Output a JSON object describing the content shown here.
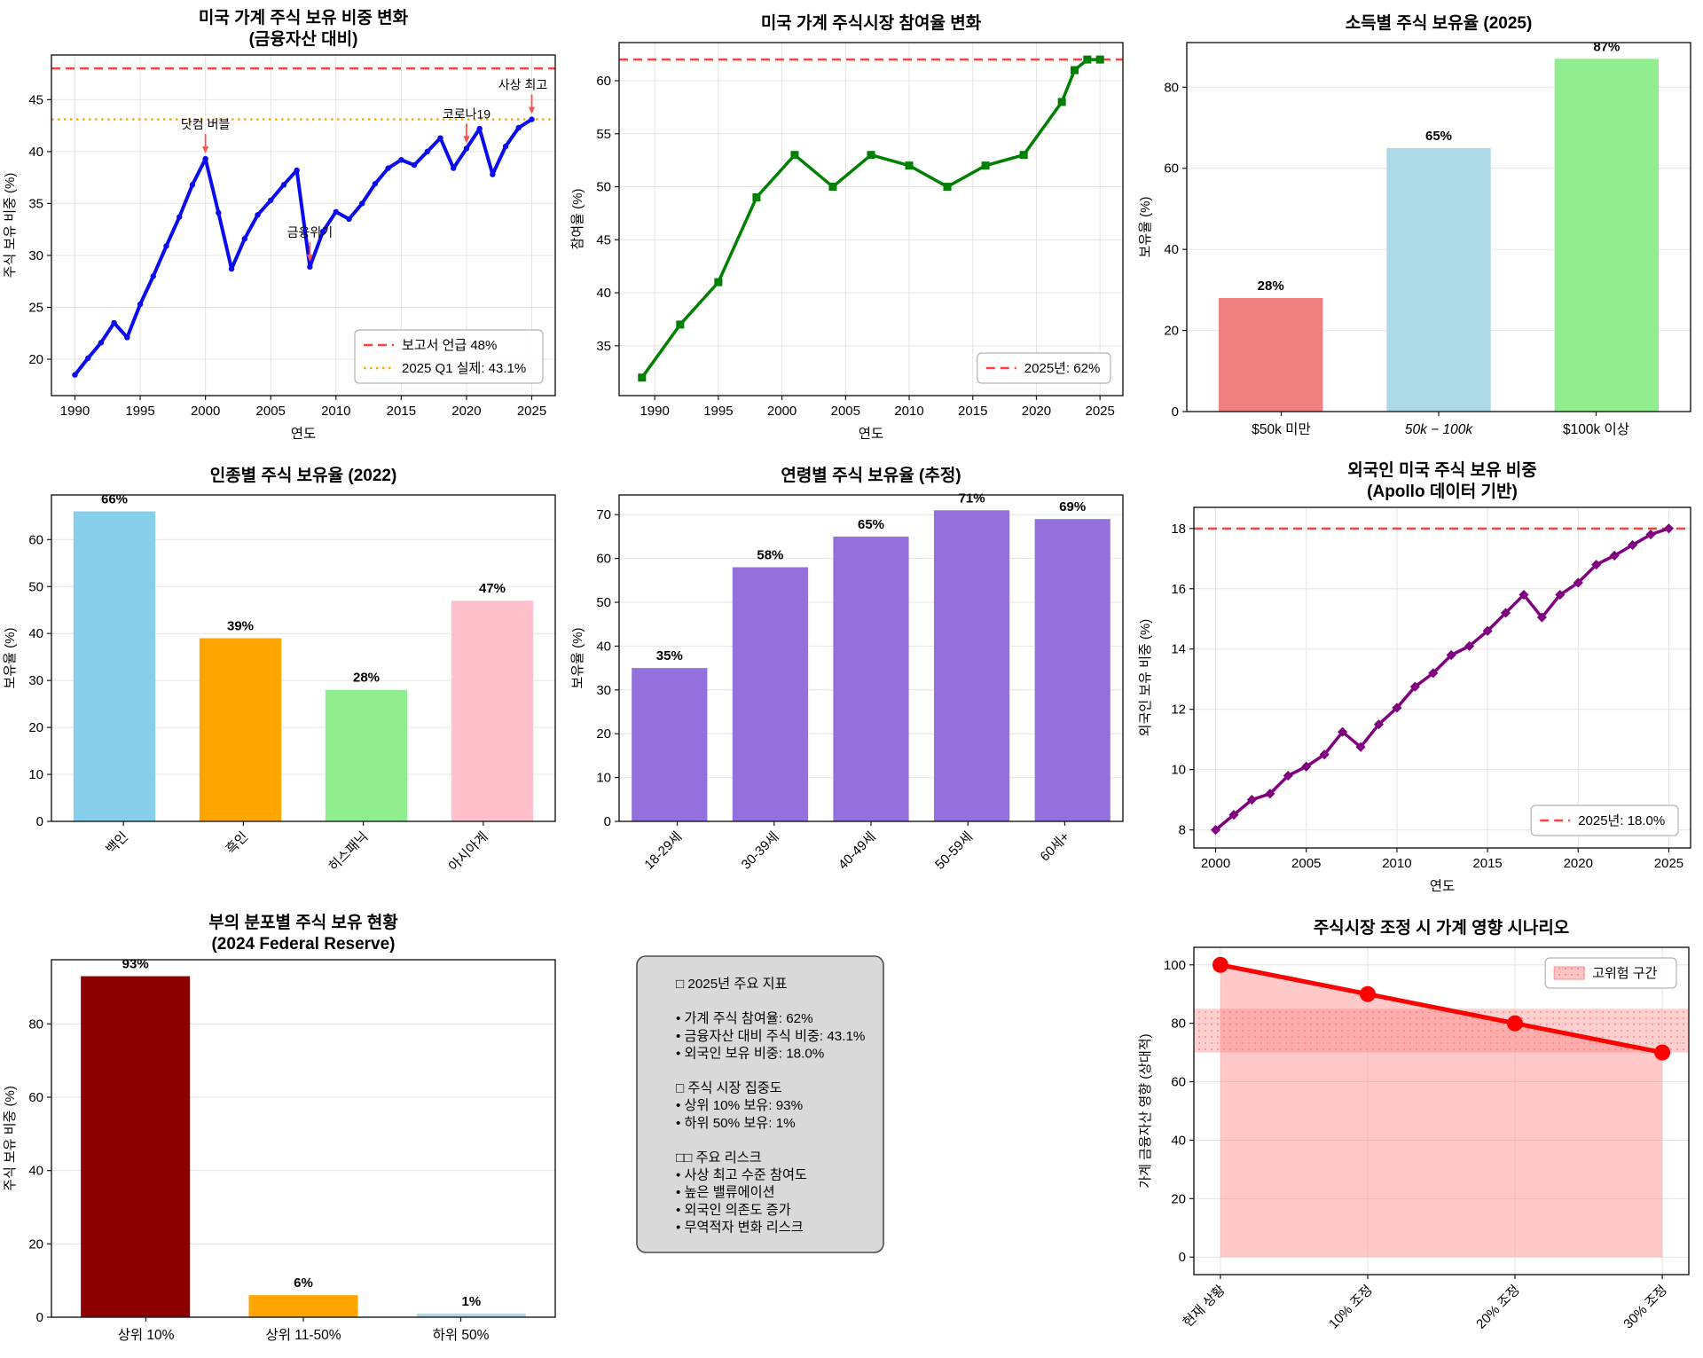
{
  "figure": {
    "background": "#ffffff",
    "grid": "3x3 matplotlib-style dashboard"
  },
  "chart_data": [
    {
      "id": "household-stock-share",
      "type": "line",
      "title": [
        "미국 가계 주식 보유 비중 변화",
        "(금융자산 대비)"
      ],
      "xlabel": "연도",
      "ylabel": "주식 보유 비중 (%)",
      "xlim": [
        1988.2,
        2026.8
      ],
      "ylim": [
        16.5,
        49.3
      ],
      "xticks": [
        1990,
        1995,
        2000,
        2005,
        2010,
        2015,
        2020,
        2025
      ],
      "yticks": [
        20,
        25,
        30,
        35,
        40,
        45
      ],
      "grid": "xy",
      "series": [
        {
          "name": "주식 보유 비중",
          "color": "#0b0bef",
          "lw": 4,
          "marker": "circle",
          "ms": 3.2,
          "x": [
            1990,
            1991,
            1992,
            1993,
            1994,
            1995,
            1996,
            1997,
            1998,
            1999,
            2000,
            2001,
            2002,
            2003,
            2004,
            2005,
            2006,
            2007,
            2008,
            2009,
            2010,
            2011,
            2012,
            2013,
            2014,
            2015,
            2016,
            2017,
            2018,
            2019,
            2020,
            2021,
            2022,
            2023,
            2024,
            2025
          ],
          "y": [
            18.5,
            20.1,
            21.6,
            23.5,
            22.1,
            25.3,
            28.0,
            30.9,
            33.7,
            36.8,
            39.3,
            34.1,
            28.7,
            31.6,
            33.9,
            35.3,
            36.8,
            38.2,
            28.9,
            32.3,
            34.2,
            33.5,
            35.0,
            36.9,
            38.4,
            39.2,
            38.7,
            40.0,
            41.3,
            38.4,
            40.3,
            42.2,
            37.8,
            40.5,
            42.3,
            43.1
          ]
        }
      ],
      "hlines": [
        {
          "y": 48.0,
          "color": "#ff4040",
          "style": "dashed",
          "label": "보고서 언급 48%"
        },
        {
          "y": 43.1,
          "color": "#ffa500",
          "style": "dotted",
          "label": "2025 Q1 실제: 43.1%"
        }
      ],
      "annotations": [
        {
          "text": "닷컴 버블",
          "x": 2000,
          "y": 39.3
        },
        {
          "text": "금융위기",
          "x": 2008,
          "y": 28.9
        },
        {
          "text": "코로나19",
          "x": 2020,
          "y": 40.3
        },
        {
          "text": "사상 최고",
          "x": 2025,
          "y": 43.1,
          "dx": -10
        }
      ],
      "legend": {
        "pos": "br",
        "entries": [
          {
            "sample": "dashed",
            "color": "#ff4040",
            "label": "보고서 언급 48%"
          },
          {
            "sample": "dotted",
            "color": "#ffa500",
            "label": "2025 Q1 실제: 43.1%"
          }
        ]
      }
    },
    {
      "id": "market-participation",
      "type": "line",
      "title": [
        "미국 가계 주식시장 참여율 변화"
      ],
      "xlabel": "연도",
      "ylabel": "참여율 (%)",
      "xlim": [
        1987.2,
        2026.8
      ],
      "ylim": [
        30.3,
        63.6
      ],
      "xticks": [
        1990,
        1995,
        2000,
        2005,
        2010,
        2015,
        2020,
        2025
      ],
      "yticks": [
        35,
        40,
        45,
        50,
        55,
        60
      ],
      "grid": "xy",
      "series": [
        {
          "name": "참여율",
          "color": "#008000",
          "lw": 3.5,
          "marker": "square",
          "ms": 9,
          "x": [
            1989,
            1992,
            1995,
            1998,
            2001,
            2004,
            2007,
            2010,
            2013,
            2016,
            2019,
            2022,
            2023,
            2024,
            2025
          ],
          "y": [
            32,
            37,
            41,
            49,
            53,
            50,
            53,
            52,
            50,
            52,
            53,
            58,
            61,
            62,
            62
          ]
        }
      ],
      "hlines": [
        {
          "y": 62,
          "color": "#ff4040",
          "style": "dashed",
          "label": "2025년: 62%"
        }
      ],
      "legend": {
        "pos": "br",
        "entries": [
          {
            "sample": "dashed",
            "color": "#ff4040",
            "label": "2025년: 62%"
          }
        ]
      }
    },
    {
      "id": "ownership-by-income",
      "type": "bar",
      "title": [
        "소득별 주식 보유율 (2025)"
      ],
      "ylabel": "보유율 (%)",
      "categories": [
        "$50k 미만",
        "50k − 100k",
        "$100k 이상"
      ],
      "italic_categories": [
        1
      ],
      "values": [
        28,
        65,
        87
      ],
      "value_labels": [
        "28%",
        "65%",
        "87%"
      ],
      "colors": [
        "#F08080",
        "#ADD8E6",
        "#90EE90"
      ],
      "yticks": [
        0,
        20,
        40,
        60,
        80
      ],
      "ylim": [
        0,
        91
      ],
      "grid": "y",
      "bar_width": 0.62,
      "xlabel_rotate": 0
    },
    {
      "id": "ownership-by-race",
      "type": "bar",
      "title": [
        "인종별 주식 보유율 (2022)"
      ],
      "ylabel": "보유율 (%)",
      "categories": [
        "백인",
        "흑인",
        "히스패닉",
        "아시아계"
      ],
      "values": [
        66,
        39,
        28,
        47
      ],
      "value_labels": [
        "66%",
        "39%",
        "28%",
        "47%"
      ],
      "colors": [
        "#87CEEB",
        "#FFA500",
        "#90EE90",
        "#FFC0CB"
      ],
      "yticks": [
        0,
        10,
        20,
        30,
        40,
        50,
        60
      ],
      "ylim": [
        0,
        69.5
      ],
      "grid": "y",
      "bar_width": 0.65,
      "xlabel_rotate": 45
    },
    {
      "id": "ownership-by-age",
      "type": "bar",
      "title": [
        "연령별 주식 보유율 (추정)"
      ],
      "ylabel": "보유율 (%)",
      "categories": [
        "18-29세",
        "30-39세",
        "40-49세",
        "50-59세",
        "60세+"
      ],
      "values": [
        35,
        58,
        65,
        71,
        69
      ],
      "value_labels": [
        "35%",
        "58%",
        "65%",
        "71%",
        "69%"
      ],
      "colors": [
        "#9370DB",
        "#9370DB",
        "#9370DB",
        "#9370DB",
        "#9370DB"
      ],
      "yticks": [
        0,
        10,
        20,
        30,
        40,
        50,
        60,
        70
      ],
      "ylim": [
        0,
        74.5
      ],
      "grid": "y",
      "bar_width": 0.75,
      "xlabel_rotate": 45
    },
    {
      "id": "foreign-holdings",
      "type": "line",
      "title": [
        "외국인 미국 주식 보유 비중",
        "(Apollo 데이터 기반)"
      ],
      "xlabel": "연도",
      "ylabel": "외국인 보유 비중 (%)",
      "xlim": [
        1998.8,
        2026.2
      ],
      "ylim": [
        7.4,
        18.7
      ],
      "xticks": [
        2000,
        2005,
        2010,
        2015,
        2020,
        2025
      ],
      "yticks": [
        8,
        10,
        12,
        14,
        16,
        18
      ],
      "grid": "xy",
      "series": [
        {
          "name": "외국인 보유 비중",
          "color": "#800080",
          "lw": 3.5,
          "marker": "diamond",
          "ms": 9,
          "x": [
            2000,
            2001,
            2002,
            2003,
            2004,
            2005,
            2006,
            2007,
            2008,
            2009,
            2010,
            2011,
            2012,
            2013,
            2014,
            2015,
            2016,
            2017,
            2018,
            2019,
            2020,
            2021,
            2022,
            2023,
            2024,
            2025
          ],
          "y": [
            8.0,
            8.5,
            9.0,
            9.2,
            9.8,
            10.1,
            10.5,
            11.25,
            10.75,
            11.5,
            12.05,
            12.75,
            13.2,
            13.8,
            14.1,
            14.6,
            15.2,
            15.8,
            15.05,
            15.8,
            16.2,
            16.8,
            17.1,
            17.45,
            17.8,
            18.0
          ]
        }
      ],
      "hlines": [
        {
          "y": 18.0,
          "color": "#ff4040",
          "style": "dashed",
          "label": "2025년: 18.0%"
        }
      ],
      "legend": {
        "pos": "br",
        "entries": [
          {
            "sample": "dashed",
            "color": "#ff4040",
            "label": "2025년: 18.0%"
          }
        ]
      }
    },
    {
      "id": "wealth-distribution",
      "type": "bar",
      "title": [
        "부의 분포별 주식 보유 현황",
        "(2024 Federal Reserve)"
      ],
      "ylabel": "주식 보유 비중 (%)",
      "categories": [
        "상위 10%",
        "상위 11-50%",
        "하위 50%"
      ],
      "values": [
        93,
        6,
        1
      ],
      "value_labels": [
        "93%",
        "6%",
        "1%"
      ],
      "colors": [
        "#8B0000",
        "#FFA500",
        "#ADD8E6"
      ],
      "yticks": [
        0,
        20,
        40,
        60,
        80
      ],
      "ylim": [
        0,
        97.5
      ],
      "grid": "y",
      "bar_width": 0.65,
      "xlabel_rotate": 0
    },
    {
      "id": "key-indicators",
      "type": "textbox",
      "box_bg": "#d9d9d9",
      "box_border": "#4d4d4d",
      "lines": [
        "□ 2025년 주요 지표",
        "",
        "• 가계 주식 참여율: 62%",
        "• 금융자산 대비 주식 비중: 43.1%",
        "• 외국인 보유 비중: 18.0%",
        "",
        "□ 주식 시장 집중도",
        "• 상위 10% 보유: 93%",
        "• 하위 50% 보유: 1%",
        "",
        "□□ 주요 리스크",
        "• 사상 최고 수준 참여도",
        "• 높은 밸류에이션",
        "• 외국인 의존도 증가",
        "• 무역적자 변화 리스크"
      ]
    },
    {
      "id": "correction-scenario",
      "type": "line-cat",
      "title": [
        "주식시장 조정 시 가계 영향 시나리오"
      ],
      "ylabel": "가계 금융자산 영향 (상대적)",
      "categories": [
        "현재 상황",
        "10% 조정",
        "20% 조정",
        "30% 조정"
      ],
      "xlim": [
        -0.18,
        3.18
      ],
      "ylim": [
        -6,
        106
      ],
      "yticks": [
        0,
        20,
        40,
        60,
        80,
        100
      ],
      "grid": "xy",
      "series": [
        {
          "name": "가계 영향",
          "color": "#ff0000",
          "lw": 5,
          "marker": "circle",
          "ms": 9,
          "x": [
            0,
            1,
            2,
            3
          ],
          "y": [
            100,
            90,
            80,
            70
          ]
        }
      ],
      "area_fill": {
        "color": "#ff7070",
        "opacity": 0.38,
        "baseline": 0
      },
      "band": {
        "y0": 70,
        "y1": 85,
        "color": "#ffaaaa",
        "opacity": 0.55,
        "label": "고위험 구간"
      },
      "legend": {
        "pos": "tr",
        "entries": [
          {
            "sample": "patch",
            "color": "#ffb6b6",
            "label": "고위험 구간"
          }
        ]
      },
      "xlabel_rotate": 45
    }
  ]
}
